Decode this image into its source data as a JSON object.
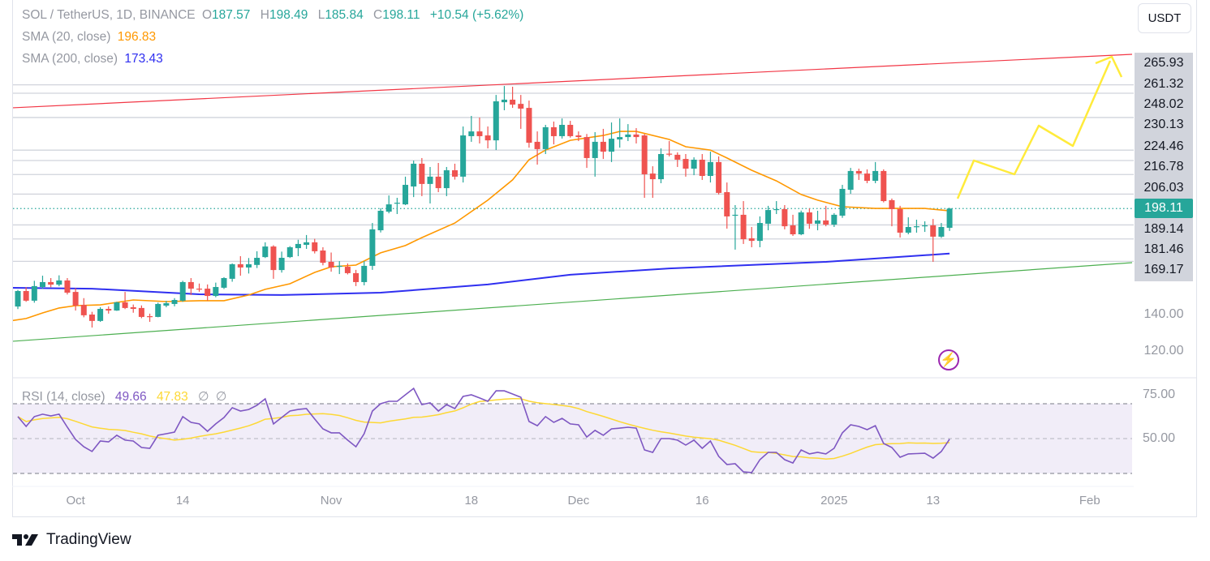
{
  "legend": {
    "symbol": "SOL / TetherUS, 1D, BINANCE",
    "o_label": "O",
    "o": "187.57",
    "h_label": "H",
    "h": "198.49",
    "l_label": "L",
    "l": "185.84",
    "c_label": "C",
    "c": "198.11",
    "change": "+10.54 (+5.62%)",
    "sma20_label": "SMA (20, close)",
    "sma20_value": "196.83",
    "sma200_label": "SMA (200, close)",
    "sma200_value": "173.43",
    "rsi_label": "RSI (14, close)",
    "rsi_value": "49.66",
    "rsi_ma_value": "47.83",
    "rsi_extra1": "∅",
    "rsi_extra2": "∅"
  },
  "currency_button": "USDT",
  "brand": "TradingView",
  "icons": {
    "alert": "lightning-bolt-icon",
    "logo": "tradingview-logo-icon"
  },
  "colors": {
    "up": "#26a69a",
    "down": "#ef5350",
    "sma20": "#ff9800",
    "sma200": "#2f2ff0",
    "rsi": "#7e57c2",
    "rsi_ma": "#fdd835",
    "resistance": "#f23645",
    "support": "#4caf50",
    "projection": "#ffeb3b"
  },
  "price_axis": {
    "levels": [
      "265.93",
      "261.32",
      "248.02",
      "230.13",
      "224.46",
      "216.78",
      "206.03",
      "198.11",
      "189.14",
      "181.46",
      "169.17"
    ],
    "current": "198.11",
    "ticks": [
      "140.00",
      "120.00"
    ]
  },
  "rsi_axis": {
    "ticks": [
      "75.00",
      "50.00"
    ]
  },
  "time_axis": [
    {
      "label": "Oct",
      "date": "2024-10-01"
    },
    {
      "label": "14",
      "date": "2024-10-14"
    },
    {
      "label": "Nov",
      "date": "2024-11-01"
    },
    {
      "label": "18",
      "date": "2024-11-18"
    },
    {
      "label": "Dec",
      "date": "2024-12-01"
    },
    {
      "label": "16",
      "date": "2024-12-16"
    },
    {
      "label": "2025",
      "date": "2025-01-01"
    },
    {
      "label": "13",
      "date": "2025-01-13"
    },
    {
      "label": "Feb",
      "date": "2025-02-01"
    }
  ],
  "chart_data": {
    "type": "candlestick",
    "columns": [
      "date",
      "open",
      "high",
      "low",
      "close"
    ],
    "candles": [
      [
        "2024-09-24",
        144.4,
        153.5,
        143,
        152.9
      ],
      [
        "2024-09-25",
        152.9,
        155,
        147,
        147.6
      ],
      [
        "2024-09-26",
        147.6,
        158.5,
        146.5,
        155.6
      ],
      [
        "2024-09-27",
        155.1,
        161.3,
        154,
        157.8
      ],
      [
        "2024-09-28",
        157.8,
        160,
        155,
        156.4
      ],
      [
        "2024-09-29",
        156.4,
        161.5,
        155.5,
        158.7
      ],
      [
        "2024-09-30",
        158.7,
        160,
        151,
        152.0
      ],
      [
        "2024-10-01",
        152.4,
        154.5,
        142.2,
        144.9
      ],
      [
        "2024-10-02",
        145.3,
        149,
        138.5,
        139.6
      ],
      [
        "2024-10-03",
        140.0,
        141.5,
        132.9,
        136.5
      ],
      [
        "2024-10-04",
        136.5,
        144,
        136,
        143.1
      ],
      [
        "2024-10-05",
        143.1,
        144.5,
        140.5,
        142.2
      ],
      [
        "2024-10-06",
        142.2,
        147,
        142,
        146.7
      ],
      [
        "2024-10-07",
        146.7,
        152.4,
        143,
        143.6
      ],
      [
        "2024-10-08",
        144,
        145.5,
        141,
        143.1
      ],
      [
        "2024-10-09",
        143.6,
        145,
        138,
        138.7
      ],
      [
        "2024-10-10",
        139.1,
        140.5,
        136,
        138.7
      ],
      [
        "2024-10-11",
        138.7,
        146.5,
        138.5,
        145.8
      ],
      [
        "2024-10-12",
        144.9,
        147.5,
        144,
        146.2
      ],
      [
        "2024-10-13",
        145.8,
        149,
        144.5,
        148.0
      ],
      [
        "2024-10-14",
        147.6,
        158.5,
        147,
        157.8
      ],
      [
        "2024-10-15",
        157.8,
        160,
        150.7,
        154.2
      ],
      [
        "2024-10-16",
        154.2,
        157,
        152.5,
        153.8
      ],
      [
        "2024-10-17",
        154.2,
        156.5,
        147.6,
        150.2
      ],
      [
        "2024-10-18",
        150.2,
        157.5,
        149.5,
        155.1
      ],
      [
        "2024-10-19",
        154.7,
        160.5,
        154,
        160.0
      ],
      [
        "2024-10-20",
        159.6,
        168,
        158,
        167.6
      ],
      [
        "2024-10-21",
        167.6,
        172,
        161.3,
        165.8
      ],
      [
        "2024-10-22",
        165.8,
        171,
        162.5,
        167.6
      ],
      [
        "2024-10-23",
        167.2,
        174.7,
        165.5,
        171.1
      ],
      [
        "2024-10-24",
        171.5,
        179.6,
        171,
        177.3
      ],
      [
        "2024-10-25",
        177.3,
        178,
        159.6,
        164.4
      ],
      [
        "2024-10-26",
        164.4,
        174.5,
        163,
        171.1
      ],
      [
        "2024-10-27",
        171.5,
        177.5,
        171,
        176.9
      ],
      [
        "2024-10-28",
        176.4,
        181,
        172,
        178.7
      ],
      [
        "2024-10-29",
        178.2,
        183.6,
        176,
        179.6
      ],
      [
        "2024-10-30",
        179.6,
        181.5,
        173.5,
        174.7
      ],
      [
        "2024-10-31",
        175.1,
        176.9,
        167,
        168.4
      ],
      [
        "2024-11-01",
        168.9,
        174,
        163.5,
        165.8
      ],
      [
        "2024-11-02",
        166.2,
        169.3,
        162.2,
        166.7
      ],
      [
        "2024-11-03",
        166.2,
        168,
        162,
        162.7
      ],
      [
        "2024-11-04",
        162.7,
        164.5,
        155.6,
        157.8
      ],
      [
        "2024-11-05",
        157.8,
        169.3,
        156,
        166.7
      ],
      [
        "2024-11-06",
        166.7,
        190.2,
        164.5,
        186.7
      ],
      [
        "2024-11-07",
        186.2,
        198.3,
        185,
        196.9
      ],
      [
        "2024-11-08",
        196.4,
        205.3,
        195.5,
        200.4
      ],
      [
        "2024-11-09",
        200.9,
        204,
        195.1,
        201.3
      ],
      [
        "2024-11-10",
        200.4,
        215.6,
        200,
        211.1
      ],
      [
        "2024-11-11",
        210.2,
        224.4,
        204.4,
        222.7
      ],
      [
        "2024-11-12",
        222.7,
        225.8,
        204.9,
        211.6
      ],
      [
        "2024-11-13",
        211.6,
        220.9,
        200.9,
        215.6
      ],
      [
        "2024-11-14",
        215.6,
        223.1,
        207.1,
        209.3
      ],
      [
        "2024-11-15",
        209.3,
        220.9,
        204.9,
        219.1
      ],
      [
        "2024-11-16",
        219.1,
        222.7,
        214,
        215.6
      ],
      [
        "2024-11-17",
        215.6,
        243.1,
        212.4,
        238.2
      ],
      [
        "2024-11-18",
        237.8,
        248.9,
        234.7,
        240.4
      ],
      [
        "2024-11-19",
        240.4,
        248,
        233.8,
        237.8
      ],
      [
        "2024-11-20",
        238.2,
        243.1,
        231.1,
        235.5
      ],
      [
        "2024-11-21",
        235.5,
        260.4,
        230.2,
        256.9
      ],
      [
        "2024-11-22",
        256.4,
        265.3,
        252,
        257.8
      ],
      [
        "2024-11-23",
        257.8,
        264.9,
        253.3,
        255.1
      ],
      [
        "2024-11-24",
        255.5,
        260.4,
        241.8,
        252.9
      ],
      [
        "2024-11-25",
        253.3,
        257.3,
        231.5,
        234.2
      ],
      [
        "2024-11-26",
        234.7,
        240.4,
        222.2,
        230.7
      ],
      [
        "2024-11-27",
        230.7,
        244,
        228,
        242.7
      ],
      [
        "2024-11-28",
        242.7,
        245.8,
        233.3,
        237.8
      ],
      [
        "2024-11-29",
        237.8,
        247.5,
        236.5,
        244.0
      ],
      [
        "2024-11-30",
        244.0,
        246.2,
        237,
        237.8
      ],
      [
        "2024-12-01",
        238.2,
        240.4,
        235.1,
        237.3
      ],
      [
        "2024-12-02",
        237.3,
        239,
        220.4,
        225.8
      ],
      [
        "2024-12-03",
        225.8,
        240,
        215.6,
        234.7
      ],
      [
        "2024-12-04",
        234.7,
        241.8,
        225.3,
        229.3
      ],
      [
        "2024-12-05",
        229.3,
        245.3,
        223.6,
        236.4
      ],
      [
        "2024-12-06",
        236.0,
        247.5,
        231.5,
        237.3
      ],
      [
        "2024-12-07",
        237.3,
        244.4,
        235.1,
        238.7
      ],
      [
        "2024-12-08",
        238.7,
        242.2,
        233.8,
        237.3
      ],
      [
        "2024-12-09",
        238.2,
        239,
        204,
        216.9
      ],
      [
        "2024-12-10",
        217.3,
        221.3,
        204,
        214.2
      ],
      [
        "2024-12-11",
        214.2,
        231.1,
        212,
        228.0
      ],
      [
        "2024-12-12",
        228.2,
        235.1,
        226.7,
        227.8
      ],
      [
        "2024-12-13",
        227.6,
        228.9,
        220.9,
        224.9
      ],
      [
        "2024-12-14",
        225.3,
        228,
        215.6,
        220.0
      ],
      [
        "2024-12-15",
        220.0,
        226.2,
        216.4,
        224.9
      ],
      [
        "2024-12-16",
        224.9,
        228,
        213.8,
        216.0
      ],
      [
        "2024-12-17",
        216.0,
        229.3,
        212.4,
        223.6
      ],
      [
        "2024-12-18",
        223.6,
        226.7,
        205.8,
        206.7
      ],
      [
        "2024-12-19",
        207.1,
        212.4,
        187.1,
        193.8
      ],
      [
        "2024-12-20",
        194.2,
        200,
        175.6,
        194.7
      ],
      [
        "2024-12-21",
        194.7,
        202.2,
        178.7,
        181.3
      ],
      [
        "2024-12-22",
        181.8,
        188,
        176.9,
        180.4
      ],
      [
        "2024-12-23",
        180.4,
        193.8,
        176.9,
        190.2
      ],
      [
        "2024-12-24",
        189.8,
        199.6,
        186.2,
        197.3
      ],
      [
        "2024-12-25",
        197.3,
        202.2,
        195.1,
        197.8
      ],
      [
        "2024-12-26",
        197.8,
        200,
        186.7,
        188.4
      ],
      [
        "2024-12-27",
        188.9,
        194.7,
        183.1,
        184.0
      ],
      [
        "2024-12-28",
        184.0,
        197,
        183.5,
        196.0
      ],
      [
        "2024-12-29",
        196.0,
        198.2,
        187,
        189.8
      ],
      [
        "2024-12-30",
        189.8,
        196.9,
        186.2,
        191.6
      ],
      [
        "2024-12-31",
        191.6,
        199.6,
        188.4,
        189.3
      ],
      [
        "2025-01-01",
        189.3,
        195.6,
        188,
        194.7
      ],
      [
        "2025-01-02",
        194.2,
        211.1,
        193,
        208.9
      ],
      [
        "2025-01-03",
        208.4,
        220.4,
        206.2,
        218.7
      ],
      [
        "2025-01-04",
        218.7,
        220,
        213.8,
        217.3
      ],
      [
        "2025-01-05",
        217.3,
        219.6,
        212,
        213.3
      ],
      [
        "2025-01-06",
        213.3,
        223.6,
        212,
        218.7
      ],
      [
        "2025-01-07",
        218.7,
        219.6,
        201.5,
        202.2
      ],
      [
        "2025-01-08",
        202.7,
        203.6,
        188.4,
        197.8
      ],
      [
        "2025-01-09",
        197.8,
        199.6,
        182.2,
        184.9
      ],
      [
        "2025-01-10",
        184.9,
        193.3,
        184,
        188.0
      ],
      [
        "2025-01-11",
        188.2,
        192,
        184.9,
        188.4
      ],
      [
        "2025-01-12",
        188.6,
        191.1,
        185.3,
        188.9
      ],
      [
        "2025-01-13",
        188.9,
        192.4,
        168.9,
        182.7
      ],
      [
        "2025-01-14",
        182.7,
        190.2,
        182,
        188.0
      ],
      [
        "2025-01-15",
        187.57,
        198.49,
        185.84,
        198.11
      ]
    ],
    "sma20": [
      [
        "2024-09-23",
        136.5
      ],
      [
        "2024-09-25",
        137.8
      ],
      [
        "2024-09-27",
        140.9
      ],
      [
        "2024-09-29",
        143.6
      ],
      [
        "2024-10-01",
        144.9
      ],
      [
        "2024-10-04",
        145.3
      ],
      [
        "2024-10-08",
        148.0
      ],
      [
        "2024-10-12",
        147.1
      ],
      [
        "2024-10-16",
        147.6
      ],
      [
        "2024-10-19",
        147.6
      ],
      [
        "2024-10-22",
        150.7
      ],
      [
        "2024-10-24",
        153.8
      ],
      [
        "2024-10-27",
        156.9
      ],
      [
        "2024-10-30",
        163.1
      ],
      [
        "2024-11-01",
        166.2
      ],
      [
        "2024-11-04",
        167.1
      ],
      [
        "2024-11-07",
        173.8
      ],
      [
        "2024-11-10",
        177.8
      ],
      [
        "2024-11-12",
        182.2
      ],
      [
        "2024-11-16",
        190.2
      ],
      [
        "2024-11-20",
        202.7
      ],
      [
        "2024-11-23",
        213.8
      ],
      [
        "2024-11-25",
        224.9
      ],
      [
        "2024-11-27",
        230.2
      ],
      [
        "2024-11-30",
        235.5
      ],
      [
        "2024-12-04",
        238.2
      ],
      [
        "2024-12-06",
        240.4
      ],
      [
        "2024-12-08",
        240.4
      ],
      [
        "2024-12-12",
        236.0
      ],
      [
        "2024-12-14",
        232.0
      ],
      [
        "2024-12-17",
        230.2
      ],
      [
        "2024-12-19",
        225.8
      ],
      [
        "2024-12-22",
        219.1
      ],
      [
        "2024-12-25",
        213.3
      ],
      [
        "2024-12-28",
        205.8
      ],
      [
        "2024-12-30",
        202.7
      ],
      [
        "2025-01-02",
        199.1
      ],
      [
        "2025-01-06",
        198.2
      ],
      [
        "2025-01-09",
        198.2
      ],
      [
        "2025-01-12",
        198.2
      ],
      [
        "2025-01-15",
        196.83
      ]
    ],
    "sma200": [
      [
        "2024-09-23",
        154.7
      ],
      [
        "2024-10-03",
        154.2
      ],
      [
        "2024-10-16",
        151.1
      ],
      [
        "2024-10-26",
        150.7
      ],
      [
        "2024-11-07",
        152.0
      ],
      [
        "2024-11-20",
        156.5
      ],
      [
        "2024-11-30",
        161.8
      ],
      [
        "2024-12-12",
        165.3
      ],
      [
        "2024-12-31",
        168.9
      ],
      [
        "2025-01-15",
        173.43
      ]
    ],
    "rsi": [
      62.6,
      57.0,
      62.6,
      64.0,
      63.0,
      64.0,
      56.5,
      49.5,
      45.3,
      42.6,
      48.6,
      48.1,
      51.9,
      49.1,
      48.6,
      44.9,
      44.4,
      51.9,
      52.8,
      53.7,
      62.6,
      59.3,
      58.4,
      54.2,
      58.4,
      62.1,
      67.7,
      65.8,
      66.7,
      69.1,
      72.8,
      58.4,
      62.1,
      65.8,
      66.7,
      67.2,
      61.2,
      55.6,
      53.3,
      53.3,
      49.1,
      45.3,
      52.8,
      65.8,
      70.0,
      71.4,
      71.4,
      75.1,
      78.8,
      69.5,
      70.5,
      65.8,
      69.5,
      67.2,
      74.2,
      75.1,
      73.3,
      71.4,
      77.4,
      77.4,
      75.6,
      73.7,
      59.8,
      57.4,
      62.6,
      59.3,
      61.6,
      58.4,
      57.9,
      50.9,
      54.7,
      51.9,
      55.6,
      56.0,
      56.5,
      56.0,
      43.5,
      42.1,
      50.0,
      50.0,
      49.1,
      46.3,
      49.1,
      44.4,
      48.6,
      39.8,
      35.1,
      35.6,
      30.9,
      30.5,
      37.9,
      42.1,
      42.1,
      37.9,
      36.0,
      43.5,
      41.2,
      42.1,
      41.2,
      44.4,
      53.3,
      57.9,
      57.0,
      55.1,
      57.4,
      47.2,
      44.9,
      39.3,
      41.2,
      41.4,
      41.6,
      38.8,
      42.6,
      49.66
    ],
    "rsi_bands": [
      30,
      50,
      70
    ],
    "price_range": [
      120,
      270
    ],
    "rsi_range": [
      25,
      80
    ]
  }
}
